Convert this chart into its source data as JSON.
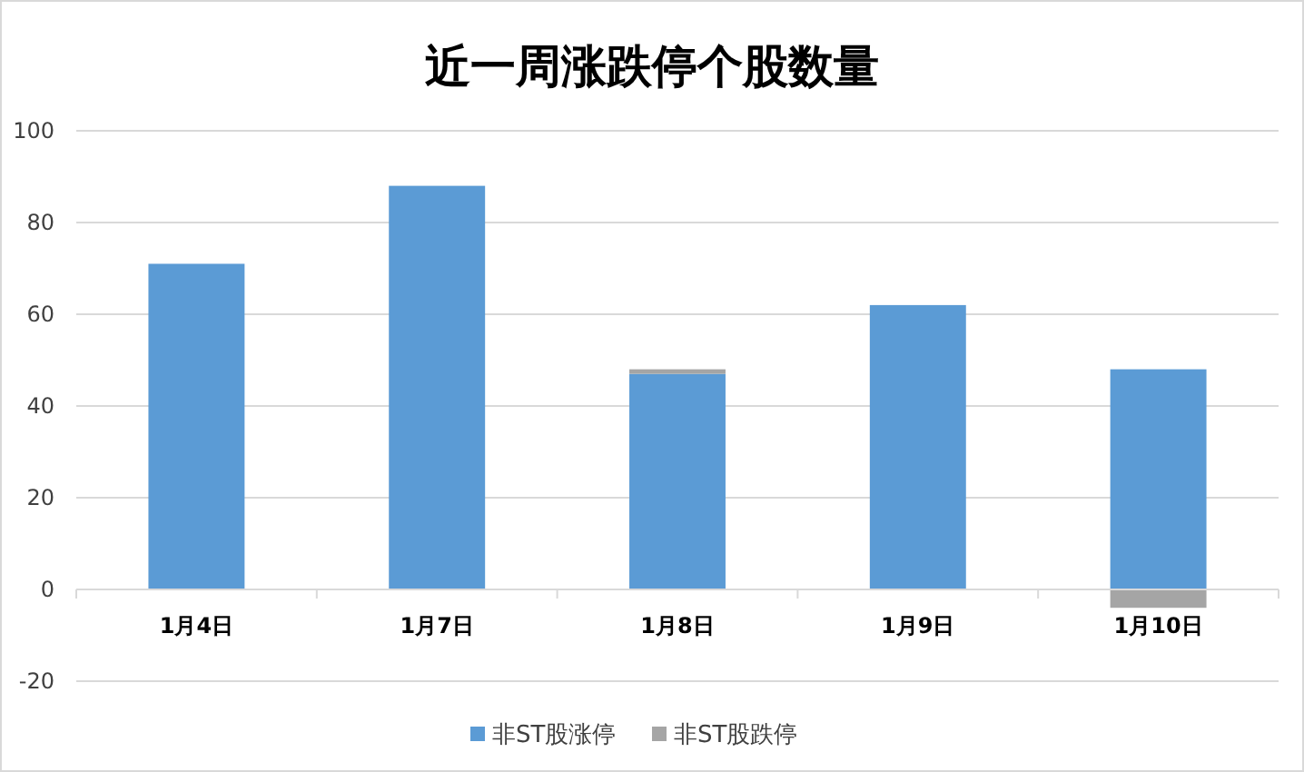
{
  "chart_data": {
    "type": "bar",
    "title": "近一周涨跌停个股数量",
    "categories": [
      "1月4日",
      "1月7日",
      "1月8日",
      "1月9日",
      "1月10日"
    ],
    "series": [
      {
        "name": "非ST股涨停",
        "color": "#5b9bd5",
        "values": [
          71,
          88,
          47,
          62,
          48
        ]
      },
      {
        "name": "非ST股跌停",
        "color": "#a5a5a5",
        "values": [
          0,
          0,
          1,
          0,
          -4
        ]
      }
    ],
    "stacked": true,
    "ylim": [
      -20,
      100
    ],
    "yticks": [
      -20,
      0,
      20,
      40,
      60,
      80,
      100
    ],
    "grid": "y",
    "legend": "bottom"
  }
}
